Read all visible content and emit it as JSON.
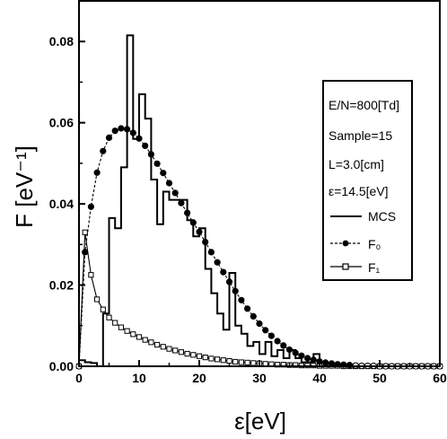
{
  "chart_data": {
    "type": "line",
    "xlabel": "ε[eV]",
    "ylabel": "F [eV⁻¹]",
    "xlim": [
      0,
      60
    ],
    "ylim": [
      0,
      0.09
    ],
    "xticks": [
      0,
      10,
      20,
      30,
      40,
      50,
      60
    ],
    "xtick_labels": [
      "0",
      "10",
      "20",
      "30",
      "40",
      "50",
      "60"
    ],
    "yticks": [
      0,
      0.02,
      0.04,
      0.06,
      0.08
    ],
    "ytick_labels": [
      "0.00",
      "0.02",
      "0.04",
      "0.06",
      "0.08"
    ],
    "grid": false,
    "legend_position": "upper-right",
    "annotations": [
      "E/N=800[Td]",
      "Sample=15",
      "L=3.0[cm]",
      "ε=14.5[eV]"
    ],
    "legend": [
      {
        "label": "MCS",
        "style": "step line"
      },
      {
        "label": "F₀",
        "style": "dashed line, filled circles"
      },
      {
        "label": "F₁",
        "style": "line, open squares"
      }
    ],
    "series": [
      {
        "name": "MCS",
        "style": "step",
        "bin_width": 1,
        "bin_start": 0,
        "values": [
          0.0015,
          0.001,
          0.0008,
          0.0,
          0.013,
          0.0365,
          0.034,
          0.049,
          0.0815,
          0.056,
          0.067,
          0.061,
          0.046,
          0.035,
          0.043,
          0.041,
          0.041,
          0.041,
          0.036,
          0.032,
          0.034,
          0.024,
          0.018,
          0.013,
          0.009,
          0.023,
          0.01,
          0.008,
          0.005,
          0.006,
          0.003,
          0.006,
          0.0025,
          0.004,
          0.002,
          0.004,
          0.002,
          0.001,
          0.001,
          0.003
        ]
      },
      {
        "name": "F₀",
        "style": "dashed-circles",
        "x": [
          0,
          1,
          2,
          3,
          4,
          5,
          6,
          7,
          8,
          9,
          10,
          11,
          12,
          13,
          14,
          15,
          16,
          17,
          18,
          19,
          20,
          21,
          22,
          23,
          24,
          25,
          26,
          27,
          28,
          29,
          30,
          31,
          32,
          33,
          34,
          35,
          36,
          37,
          38,
          39,
          40,
          41,
          42,
          43,
          44,
          45,
          46,
          47,
          48,
          49,
          50,
          51,
          52,
          53,
          54,
          55,
          56,
          57,
          58,
          59,
          60
        ],
        "values": [
          0.0,
          0.0281,
          0.0393,
          0.0477,
          0.053,
          0.0563,
          0.058,
          0.0586,
          0.0584,
          0.0575,
          0.0561,
          0.0543,
          0.0522,
          0.0499,
          0.0476,
          0.0451,
          0.0427,
          0.0402,
          0.0378,
          0.0354,
          0.0331,
          0.0306,
          0.0281,
          0.0256,
          0.0232,
          0.0208,
          0.0185,
          0.0163,
          0.0142,
          0.0123,
          0.0105,
          0.0089,
          0.0075,
          0.0062,
          0.0051,
          0.0041,
          0.0033,
          0.0026,
          0.002,
          0.0016,
          0.0012,
          0.0009,
          0.0007,
          0.0005,
          0.0004,
          0.0003,
          0.0002,
          0.0001,
          0.0001,
          0.0001,
          0.0,
          0.0,
          0.0,
          0.0,
          0.0,
          0.0,
          0.0,
          0.0,
          0.0,
          0.0,
          0.0
        ]
      },
      {
        "name": "F₁",
        "style": "line-squares",
        "x": [
          0,
          1,
          2,
          3,
          4,
          5,
          6,
          7,
          8,
          9,
          10,
          11,
          12,
          13,
          14,
          15,
          16,
          17,
          18,
          19,
          20,
          21,
          22,
          23,
          24,
          25,
          26,
          27,
          28,
          29,
          30,
          31,
          32,
          33,
          34,
          35,
          36,
          37,
          38,
          39,
          40,
          41,
          42,
          43,
          44,
          45,
          46,
          47,
          48,
          49,
          50,
          51,
          52,
          53,
          54,
          55,
          56,
          57,
          58,
          59,
          60
        ],
        "values": [
          0.0,
          0.033,
          0.0225,
          0.0165,
          0.014,
          0.012,
          0.0107,
          0.0096,
          0.0087,
          0.0079,
          0.0072,
          0.0065,
          0.0059,
          0.0053,
          0.0048,
          0.0043,
          0.0039,
          0.0035,
          0.0031,
          0.0028,
          0.0025,
          0.0022,
          0.0019,
          0.0017,
          0.0015,
          0.0013,
          0.0011,
          0.001,
          0.0009,
          0.0008,
          0.0007,
          0.0006,
          0.0005,
          0.0004,
          0.0004,
          0.0003,
          0.0003,
          0.0002,
          0.0002,
          0.0002,
          0.0001,
          0.0001,
          0.0001,
          0.0001,
          0.0,
          0.0,
          0.0,
          0.0,
          0.0,
          0.0,
          0.0,
          0.0,
          0.0,
          0.0,
          0.0,
          0.0,
          0.0,
          0.0,
          0.0,
          0.0,
          0.0
        ]
      }
    ]
  }
}
